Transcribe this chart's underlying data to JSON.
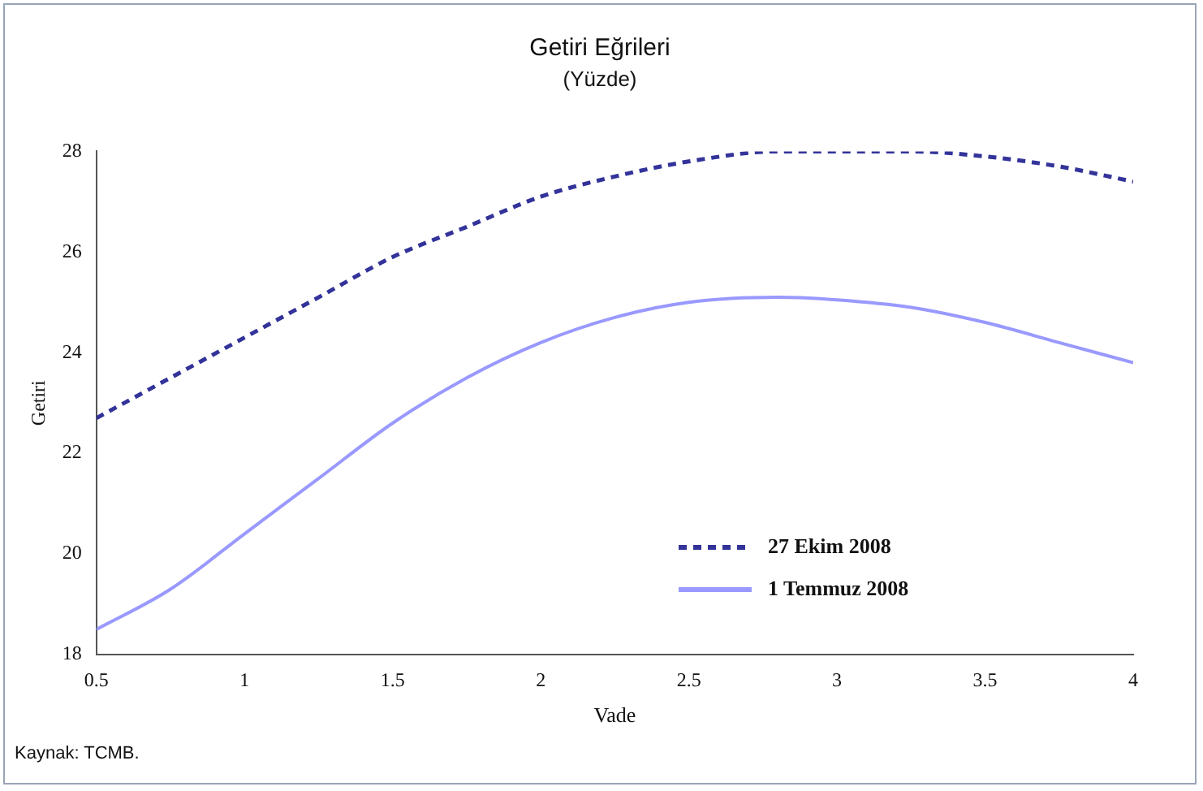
{
  "chart_data": {
    "type": "line",
    "title": "Getiri Eğrileri",
    "subtitle": "(Yüzde)",
    "xlabel": "Vade",
    "ylabel": "Getiri",
    "x": [
      0.5,
      0.75,
      1,
      1.25,
      1.5,
      1.75,
      2,
      2.25,
      2.5,
      2.8,
      3,
      3.25,
      3.5,
      3.75,
      4
    ],
    "series": [
      {
        "name": "27 Ekim 2008",
        "color": "#33339a",
        "line_style": "dashed",
        "values": [
          22.7,
          23.5,
          24.3,
          25.1,
          25.9,
          26.5,
          27.1,
          27.5,
          27.8,
          28.0,
          28.0,
          28.0,
          27.9,
          27.7,
          27.4
        ]
      },
      {
        "name": "1 Temmuz 2008",
        "color": "#9999ff",
        "line_style": "solid",
        "values": [
          18.5,
          19.3,
          20.4,
          21.5,
          22.6,
          23.5,
          24.2,
          24.7,
          25.0,
          25.1,
          25.05,
          24.9,
          24.6,
          24.2,
          23.8
        ]
      }
    ],
    "xlim": [
      0.5,
      4
    ],
    "xticks": [
      0.5,
      1,
      1.5,
      2,
      2.5,
      3,
      3.5,
      4
    ],
    "ylim": [
      18,
      28
    ],
    "yticks": [
      18,
      20,
      22,
      24,
      26,
      28
    ],
    "grid": false,
    "legend": "bottom right",
    "marker": "none",
    "annotations": [
      "Kaynak: TCMB."
    ]
  }
}
